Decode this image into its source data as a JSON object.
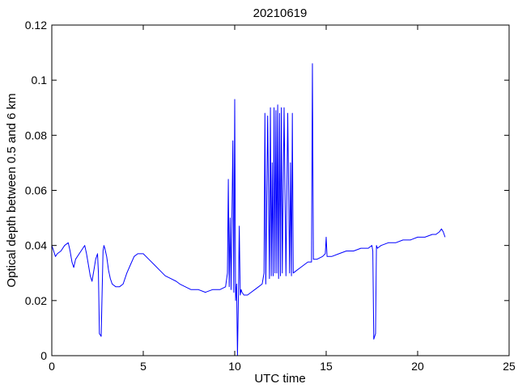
{
  "chart_data": {
    "type": "line",
    "title": "20210619",
    "xlabel": "UTC time",
    "ylabel": "Optical depth between 0.5 and 6 km",
    "xlim": [
      0,
      25
    ],
    "ylim": [
      0,
      0.12
    ],
    "xticks": [
      0,
      5,
      10,
      15,
      20,
      25
    ],
    "xtick_labels": [
      "0",
      "5",
      "10",
      "15",
      "20",
      "25"
    ],
    "yticks": [
      0,
      0.02,
      0.04,
      0.06,
      0.08,
      0.1,
      0.12
    ],
    "ytick_labels": [
      "0",
      "0.02",
      "0.04",
      "0.06",
      "0.08",
      "0.1",
      "0.12"
    ],
    "grid": false,
    "line_color": "#0000ff",
    "series": [
      {
        "x": [
          0.0,
          0.1,
          0.2,
          0.3,
          0.5,
          0.7,
          0.9,
          1.0,
          1.1,
          1.2,
          1.3,
          1.5,
          1.7,
          1.8,
          1.9,
          2.0,
          2.1,
          2.2,
          2.3,
          2.4,
          2.5,
          2.55,
          2.6,
          2.7,
          2.8,
          2.85,
          2.9,
          3.0,
          3.1,
          3.2,
          3.3,
          3.5,
          3.7,
          3.9,
          4.1,
          4.3,
          4.5,
          4.7,
          5.0,
          5.3,
          5.6,
          5.9,
          6.2,
          6.5,
          6.8,
          7.0,
          7.3,
          7.6,
          8.0,
          8.4,
          8.8,
          9.2,
          9.5,
          9.6,
          9.65,
          9.7,
          9.75,
          9.8,
          9.9,
          9.95,
          10.0,
          10.05,
          10.1,
          10.15,
          10.2,
          10.25,
          10.3,
          10.35,
          10.4,
          10.5,
          10.7,
          10.9,
          11.1,
          11.3,
          11.5,
          11.6,
          11.65,
          11.7,
          11.8,
          11.9,
          11.95,
          12.0,
          12.05,
          12.1,
          12.15,
          12.2,
          12.25,
          12.3,
          12.35,
          12.4,
          12.45,
          12.5,
          12.55,
          12.6,
          12.7,
          12.8,
          12.9,
          13.0,
          13.05,
          13.1,
          13.15,
          13.2,
          13.4,
          13.6,
          13.8,
          14.0,
          14.2,
          14.25,
          14.3,
          14.35,
          14.5,
          14.8,
          14.95,
          15.0,
          15.05,
          15.3,
          15.7,
          16.1,
          16.5,
          16.9,
          17.3,
          17.5,
          17.55,
          17.6,
          17.7,
          17.75,
          17.8,
          18.0,
          18.4,
          18.8,
          19.2,
          19.6,
          20.0,
          20.4,
          20.8,
          21.0,
          21.2,
          21.3,
          21.4,
          21.5
        ],
        "y": [
          0.04,
          0.038,
          0.036,
          0.037,
          0.038,
          0.04,
          0.041,
          0.038,
          0.034,
          0.032,
          0.035,
          0.037,
          0.039,
          0.04,
          0.037,
          0.033,
          0.029,
          0.027,
          0.031,
          0.035,
          0.037,
          0.03,
          0.008,
          0.007,
          0.038,
          0.04,
          0.039,
          0.036,
          0.031,
          0.028,
          0.026,
          0.025,
          0.025,
          0.026,
          0.03,
          0.033,
          0.036,
          0.037,
          0.037,
          0.035,
          0.033,
          0.031,
          0.029,
          0.028,
          0.027,
          0.026,
          0.025,
          0.024,
          0.024,
          0.023,
          0.024,
          0.024,
          0.025,
          0.03,
          0.064,
          0.025,
          0.05,
          0.024,
          0.078,
          0.023,
          0.093,
          0.02,
          0.026,
          0.0,
          0.02,
          0.047,
          0.022,
          0.024,
          0.023,
          0.022,
          0.022,
          0.023,
          0.024,
          0.025,
          0.026,
          0.03,
          0.088,
          0.026,
          0.087,
          0.028,
          0.09,
          0.029,
          0.07,
          0.029,
          0.09,
          0.03,
          0.089,
          0.03,
          0.091,
          0.028,
          0.088,
          0.029,
          0.09,
          0.03,
          0.09,
          0.029,
          0.088,
          0.03,
          0.07,
          0.029,
          0.088,
          0.03,
          0.031,
          0.032,
          0.033,
          0.034,
          0.034,
          0.106,
          0.035,
          0.035,
          0.035,
          0.036,
          0.037,
          0.043,
          0.036,
          0.036,
          0.037,
          0.038,
          0.038,
          0.039,
          0.039,
          0.04,
          0.038,
          0.006,
          0.008,
          0.04,
          0.039,
          0.04,
          0.041,
          0.041,
          0.042,
          0.042,
          0.043,
          0.043,
          0.044,
          0.044,
          0.045,
          0.046,
          0.045,
          0.043
        ]
      }
    ]
  }
}
